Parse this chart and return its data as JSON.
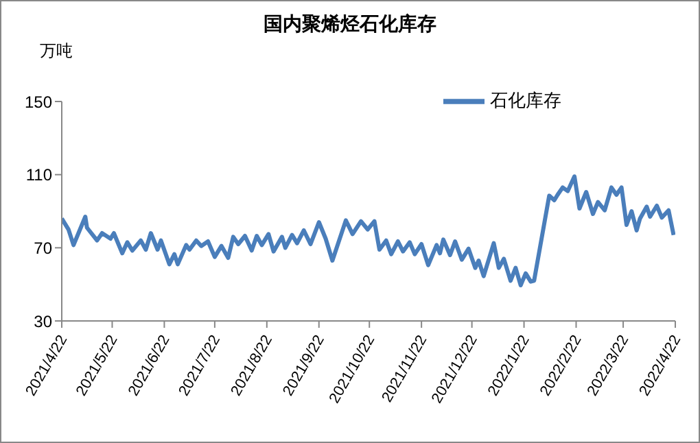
{
  "chart_data": {
    "type": "line",
    "title": "国内聚烯烃石化库存",
    "ylabel": "万吨",
    "x": [
      "2021-04-22",
      "2021-04-26",
      "2021-04-29",
      "2021-05-06",
      "2021-05-07",
      "2021-05-13",
      "2021-05-16",
      "2021-05-21",
      "2021-05-23",
      "2021-05-28",
      "2021-05-31",
      "2021-06-03",
      "2021-06-08",
      "2021-06-11",
      "2021-06-14",
      "2021-06-18",
      "2021-06-20",
      "2021-06-25",
      "2021-06-28",
      "2021-06-30",
      "2021-07-05",
      "2021-07-07",
      "2021-07-11",
      "2021-07-14",
      "2021-07-18",
      "2021-07-22",
      "2021-07-26",
      "2021-07-30",
      "2021-08-02",
      "2021-08-05",
      "2021-08-09",
      "2021-08-13",
      "2021-08-16",
      "2021-08-19",
      "2021-08-23",
      "2021-08-26",
      "2021-08-31",
      "2021-09-02",
      "2021-09-06",
      "2021-09-09",
      "2021-09-13",
      "2021-09-17",
      "2021-09-22",
      "2021-09-26",
      "2021-09-30",
      "2021-10-08",
      "2021-10-12",
      "2021-10-17",
      "2021-10-21",
      "2021-10-25",
      "2021-10-28",
      "2021-11-01",
      "2021-11-04",
      "2021-11-08",
      "2021-11-11",
      "2021-11-15",
      "2021-11-18",
      "2021-11-22",
      "2021-11-26",
      "2021-12-01",
      "2021-12-03",
      "2021-12-05",
      "2021-12-09",
      "2021-12-12",
      "2021-12-16",
      "2021-12-20",
      "2021-12-24",
      "2021-12-26",
      "2021-12-29",
      "2022-01-04",
      "2022-01-07",
      "2022-01-10",
      "2022-01-14",
      "2022-01-17",
      "2022-01-20",
      "2022-01-23",
      "2022-01-26",
      "2022-01-28",
      "2022-02-06",
      "2022-02-09",
      "2022-02-11",
      "2022-02-14",
      "2022-02-17",
      "2022-02-21",
      "2022-02-24",
      "2022-02-28",
      "2022-03-04",
      "2022-03-07",
      "2022-03-11",
      "2022-03-15",
      "2022-03-18",
      "2022-03-21",
      "2022-03-24",
      "2022-03-27",
      "2022-03-30",
      "2022-04-01",
      "2022-04-05",
      "2022-04-07",
      "2022-04-11",
      "2022-04-14",
      "2022-04-18",
      "2022-04-21"
    ],
    "series": [
      {
        "name": "石化库存",
        "color": "#4a7ebb",
        "values": [
          86,
          80,
          71.5,
          87,
          81,
          74,
          78,
          75,
          78,
          67,
          73,
          68.5,
          74,
          69,
          78,
          69,
          74,
          61,
          66.5,
          61,
          71.5,
          69,
          74,
          71,
          73.5,
          65,
          71,
          64.5,
          76,
          72,
          76.5,
          68.5,
          76.5,
          71.5,
          77.5,
          68,
          76,
          70,
          77,
          72.5,
          79.5,
          72,
          84,
          75,
          63,
          85,
          77.5,
          84.5,
          80,
          84.5,
          69,
          74,
          66.5,
          73.5,
          68,
          73,
          66.5,
          72,
          60.5,
          71.5,
          67,
          74.5,
          66,
          73.5,
          63.5,
          69.5,
          59,
          63,
          54.5,
          72.5,
          59,
          64,
          52,
          59,
          49.5,
          56,
          51.5,
          52,
          98.5,
          96,
          99,
          103,
          101,
          109,
          91.5,
          100.5,
          88.5,
          95,
          90.5,
          103,
          99,
          103,
          82.5,
          90,
          79.5,
          86,
          92.5,
          87,
          93,
          86.5,
          90.5,
          77
        ]
      }
    ],
    "xlim": [
      "2021-04-22",
      "2022-04-22"
    ],
    "xticks": [
      {
        "value": "2021-04-22",
        "label": "2021/4/22"
      },
      {
        "value": "2021-05-22",
        "label": "2021/5/22"
      },
      {
        "value": "2021-06-22",
        "label": "2021/6/22"
      },
      {
        "value": "2021-07-22",
        "label": "2021/7/22"
      },
      {
        "value": "2021-08-22",
        "label": "2021/8/22"
      },
      {
        "value": "2021-09-22",
        "label": "2021/9/22"
      },
      {
        "value": "2021-10-22",
        "label": "2021/10/22"
      },
      {
        "value": "2021-11-22",
        "label": "2021/11/22"
      },
      {
        "value": "2021-12-22",
        "label": "2021/12/22"
      },
      {
        "value": "2022-01-22",
        "label": "2022/1/22"
      },
      {
        "value": "2022-02-22",
        "label": "2022/2/22"
      },
      {
        "value": "2022-03-22",
        "label": "2022/3/22"
      },
      {
        "value": "2022-04-22",
        "label": "2022/4/22"
      }
    ],
    "ylim": [
      30,
      150
    ],
    "yticks": [
      30,
      70,
      110,
      150
    ],
    "grid": false,
    "legend": "top right",
    "marker": "none",
    "line_style": "solid"
  }
}
